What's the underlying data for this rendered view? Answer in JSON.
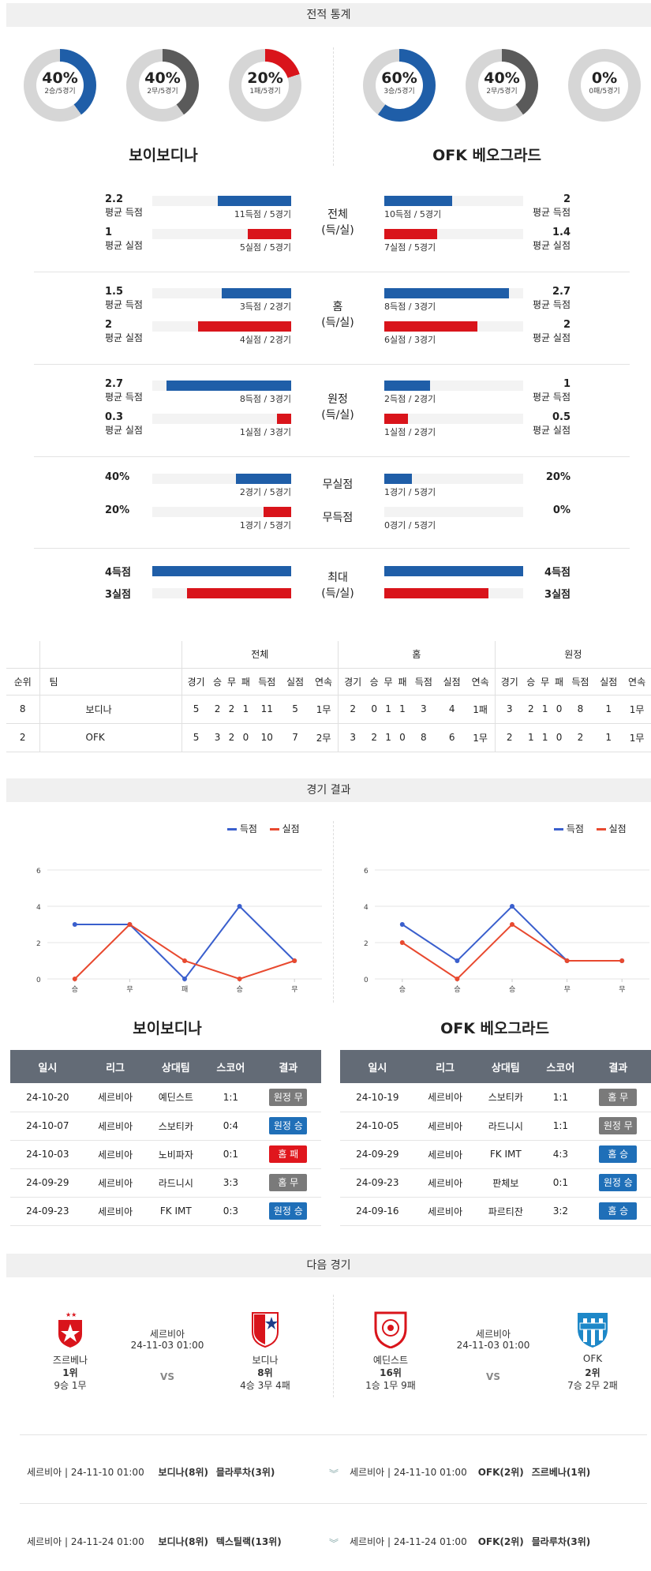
{
  "sections": {
    "stats": "전적 통계",
    "results": "경기 결과",
    "next": "다음 경기"
  },
  "teams": {
    "home": "보이보디나",
    "away": "OFK 베오그라드"
  },
  "donuts": [
    {
      "pct": "40%",
      "sub": "2승/5경기",
      "value": 0.4,
      "color": "#1f5ea8"
    },
    {
      "pct": "40%",
      "sub": "2무/5경기",
      "value": 0.4,
      "color": "#5a5a5a"
    },
    {
      "pct": "20%",
      "sub": "1패/5경기",
      "value": 0.2,
      "color": "#d9141b"
    },
    {
      "pct": "60%",
      "sub": "3승/5경기",
      "value": 0.6,
      "color": "#1f5ea8"
    },
    {
      "pct": "40%",
      "sub": "2무/5경기",
      "value": 0.4,
      "color": "#5a5a5a"
    },
    {
      "pct": "0%",
      "sub": "0패/5경기",
      "value": 0.0,
      "color": "#d9141b"
    }
  ],
  "stat_groups": [
    {
      "center": [
        "전체",
        "(득/실)"
      ],
      "rows": [
        {
          "lv": "2.2",
          "ll": "평균 득점",
          "lc": "11득점 / 5경기",
          "lf": 0.53,
          "rv": "2",
          "rl": "평균 득점",
          "rc": "10득점 / 5경기",
          "rf": 0.49,
          "color": "blue"
        },
        {
          "lv": "1",
          "ll": "평균 실점",
          "lc": "5실점 / 5경기",
          "lf": 0.31,
          "rv": "1.4",
          "rl": "평균 실점",
          "rc": "7실점 / 5경기",
          "rf": 0.38,
          "color": "red"
        }
      ]
    },
    {
      "center": [
        "홈",
        "(득/실)"
      ],
      "rows": [
        {
          "lv": "1.5",
          "ll": "평균 득점",
          "lc": "3득점 / 2경기",
          "lf": 0.5,
          "rv": "2.7",
          "rl": "평균 득점",
          "rc": "8득점 / 3경기",
          "rf": 0.9,
          "color": "blue"
        },
        {
          "lv": "2",
          "ll": "평균 실점",
          "lc": "4실점 / 2경기",
          "lf": 0.67,
          "rv": "2",
          "rl": "평균 실점",
          "rc": "6실점 / 3경기",
          "rf": 0.67,
          "color": "red"
        }
      ]
    },
    {
      "center": [
        "원정",
        "(득/실)"
      ],
      "rows": [
        {
          "lv": "2.7",
          "ll": "평균 득점",
          "lc": "8득점 / 3경기",
          "lf": 0.9,
          "rv": "1",
          "rl": "평균 득점",
          "rc": "2득점 / 2경기",
          "rf": 0.33,
          "color": "blue"
        },
        {
          "lv": "0.3",
          "ll": "평균 실점",
          "lc": "1실점 / 3경기",
          "lf": 0.1,
          "rv": "0.5",
          "rl": "평균 실점",
          "rc": "1실점 / 2경기",
          "rf": 0.17,
          "color": "red"
        }
      ]
    }
  ],
  "clean": [
    {
      "center": "무실점",
      "lv": "40%",
      "lc": "2경기 / 5경기",
      "lf": 0.4,
      "rv": "20%",
      "rc": "1경기 / 5경기",
      "rf": 0.2,
      "color": "blue"
    },
    {
      "center": "무득점",
      "lv": "20%",
      "lc": "1경기 / 5경기",
      "lf": 0.2,
      "rv": "0%",
      "rc": "0경기 / 5경기",
      "rf": 0.0,
      "color": "red"
    }
  ],
  "maxes": {
    "center": [
      "최대",
      "(득/실)"
    ],
    "rows": [
      {
        "lv": "4득점",
        "lf": 1.0,
        "rv": "4득점",
        "rf": 1.0,
        "color": "blue"
      },
      {
        "lv": "3실점",
        "lf": 0.75,
        "rv": "3실점",
        "rf": 0.75,
        "color": "red"
      }
    ]
  },
  "standings": {
    "groups": [
      "전체",
      "홈",
      "원정"
    ],
    "cols": [
      "순위",
      "팀",
      "경기",
      "승",
      "무",
      "패",
      "득점",
      "실점",
      "연속"
    ],
    "rows": [
      {
        "rank": "8",
        "team": "보디나",
        "all": [
          "5",
          "2",
          "2",
          "1",
          "11",
          "5",
          "1무"
        ],
        "home": [
          "2",
          "0",
          "1",
          "1",
          "3",
          "4",
          "1패"
        ],
        "away": [
          "3",
          "2",
          "1",
          "0",
          "8",
          "1",
          "1무"
        ]
      },
      {
        "rank": "2",
        "team": "OFK",
        "all": [
          "5",
          "3",
          "2",
          "0",
          "10",
          "7",
          "2무"
        ],
        "home": [
          "3",
          "2",
          "1",
          "0",
          "8",
          "6",
          "1무"
        ],
        "away": [
          "2",
          "1",
          "1",
          "0",
          "2",
          "1",
          "1무"
        ]
      }
    ]
  },
  "legend": {
    "scored": "득점",
    "conceded": "실점"
  },
  "chart_data": [
    {
      "type": "line",
      "categories": [
        "승",
        "무",
        "패",
        "승",
        "무"
      ],
      "ylim": [
        0,
        6
      ],
      "yticks": [
        0,
        2,
        4,
        6
      ],
      "series": [
        {
          "name": "득점",
          "values": [
            3,
            3,
            0,
            4,
            1
          ],
          "color": "#3a5fcd"
        },
        {
          "name": "실점",
          "values": [
            0,
            3,
            1,
            0,
            1
          ],
          "color": "#e8492f"
        }
      ]
    },
    {
      "type": "line",
      "categories": [
        "승",
        "승",
        "승",
        "무",
        "무"
      ],
      "ylim": [
        0,
        6
      ],
      "yticks": [
        0,
        2,
        4,
        6
      ],
      "series": [
        {
          "name": "득점",
          "values": [
            3,
            1,
            4,
            1,
            1
          ],
          "color": "#3a5fcd"
        },
        {
          "name": "실점",
          "values": [
            2,
            0,
            3,
            1,
            1
          ],
          "color": "#e8492f"
        }
      ]
    }
  ],
  "results_header": [
    "일시",
    "리그",
    "상대팀",
    "스코어",
    "결과"
  ],
  "results_home": [
    {
      "date": "24-10-20",
      "league": "세르비아",
      "opp": "예딘스트",
      "score": "1:1",
      "res": "원정 무",
      "color": "#7a7a7a"
    },
    {
      "date": "24-10-07",
      "league": "세르비아",
      "opp": "스보티카",
      "score": "0:4",
      "res": "원정 승",
      "color": "#1f6fb8"
    },
    {
      "date": "24-10-03",
      "league": "세르비아",
      "opp": "노비파자",
      "score": "0:1",
      "res": "홈 패",
      "color": "#e0161d"
    },
    {
      "date": "24-09-29",
      "league": "세르비아",
      "opp": "라드니시",
      "score": "3:3",
      "res": "홈 무",
      "color": "#7a7a7a"
    },
    {
      "date": "24-09-23",
      "league": "세르비아",
      "opp": "FK IMT",
      "score": "0:3",
      "res": "원정 승",
      "color": "#1f6fb8"
    }
  ],
  "results_away": [
    {
      "date": "24-10-19",
      "league": "세르비아",
      "opp": "스보티카",
      "score": "1:1",
      "res": "홈 무",
      "color": "#7a7a7a"
    },
    {
      "date": "24-10-05",
      "league": "세르비아",
      "opp": "라드니시",
      "score": "1:1",
      "res": "원정 무",
      "color": "#7a7a7a"
    },
    {
      "date": "24-09-29",
      "league": "세르비아",
      "opp": "FK IMT",
      "score": "4:3",
      "res": "홈 승",
      "color": "#1f6fb8"
    },
    {
      "date": "24-09-23",
      "league": "세르비아",
      "opp": "판체보",
      "score": "0:1",
      "res": "원정 승",
      "color": "#1f6fb8"
    },
    {
      "date": "24-09-16",
      "league": "세르비아",
      "opp": "파르티잔",
      "score": "3:2",
      "res": "홈 승",
      "color": "#1f6fb8"
    }
  ],
  "next_matches": [
    {
      "league": "세르비아",
      "time": "24-11-03 01:00",
      "vs": "VS",
      "t1": {
        "name": "즈르베나",
        "rank": "1위",
        "rec": "9승 1무"
      },
      "t2": {
        "name": "보디나",
        "rank": "8위",
        "rec": "4승 3무 4패"
      }
    },
    {
      "league": "세르비아",
      "time": "24-11-03 01:00",
      "vs": "VS",
      "t1": {
        "name": "예딘스트",
        "rank": "16위",
        "rec": "1승 1무 9패"
      },
      "t2": {
        "name": "OFK",
        "rank": "2위",
        "rec": "7승 2무 2패"
      }
    }
  ],
  "future": [
    {
      "l": {
        "info": "세르비아 | 24-11-10 01:00",
        "t1": "보디나(8위)",
        "t2": "믈라루차(3위)"
      },
      "r": {
        "info": "세르비아 | 24-11-10 01:00",
        "t1": "OFK(2위)",
        "t2": "즈르베나(1위)"
      }
    },
    {
      "l": {
        "info": "세르비아 | 24-11-24 01:00",
        "t1": "보디나(8위)",
        "t2": "텍스틸랙(13위)"
      },
      "r": {
        "info": "세르비아 | 24-11-24 01:00",
        "t1": "OFK(2위)",
        "t2": "믈라루차(3위)"
      }
    }
  ]
}
